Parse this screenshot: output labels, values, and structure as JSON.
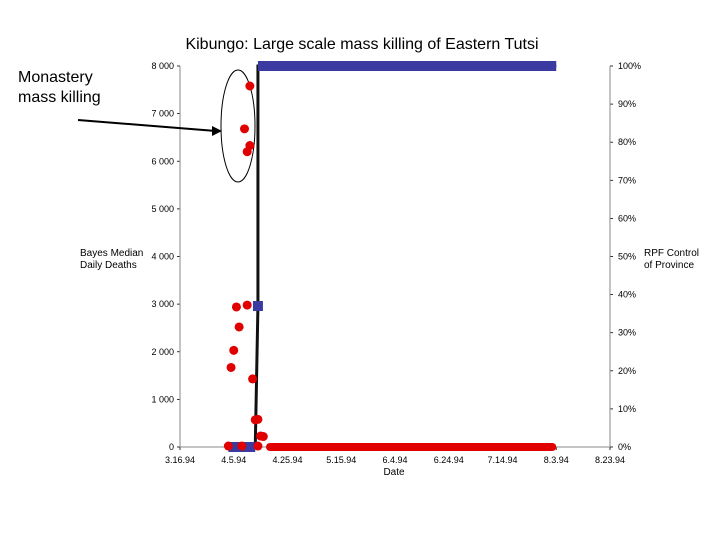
{
  "chart_data": {
    "type": "scatter",
    "title": "Kibungo: Large scale mass killing of Eastern Tutsi",
    "xlabel": "Date",
    "ylabel_left": "Bayes Median Daily Deaths",
    "ylabel_right": "RPF Control of Province",
    "annotation": "Monastery mass killing",
    "x_tick_labels": [
      "3.16.94",
      "4.5.94",
      "4.25.94",
      "5.15.94",
      "6.4.94",
      "6.24.94",
      "7.14.94",
      "8.3.94",
      "8.23.94"
    ],
    "x_range_days": [
      0,
      160
    ],
    "y_left_ticks": [
      "0",
      "1 000",
      "2 000",
      "3 000",
      "4 000",
      "5 000",
      "6 000",
      "7 000",
      "8 000"
    ],
    "y_left_range": [
      0,
      8000
    ],
    "y_right_ticks": [
      "0%",
      "10%",
      "20%",
      "30%",
      "40%",
      "50%",
      "60%",
      "70%",
      "80%",
      "90%",
      "100%"
    ],
    "y_right_range": [
      0,
      100
    ],
    "series": [
      {
        "color": "#e00000",
        "marker": "circle",
        "points": [
          {
            "x": 26,
            "y": 7580
          },
          {
            "x": 24,
            "y": 6680
          },
          {
            "x": 26,
            "y": 6330
          },
          {
            "x": 25,
            "y": 6200
          },
          {
            "x": 21,
            "y": 2940
          },
          {
            "x": 25,
            "y": 2980
          },
          {
            "x": 22,
            "y": 2520
          },
          {
            "x": 20,
            "y": 2030
          },
          {
            "x": 19,
            "y": 1670
          },
          {
            "x": 27,
            "y": 1430
          },
          {
            "x": 28,
            "y": 570
          },
          {
            "x": 29,
            "y": 580
          },
          {
            "x": 30,
            "y": 230
          },
          {
            "x": 31,
            "y": 220
          },
          {
            "x": 29,
            "y": 20
          },
          {
            "x": 23,
            "y": 20
          },
          {
            "x": 18,
            "y": 20
          }
        ],
        "floor_line": {
          "x_start": 32,
          "x_end": 140,
          "y": 0
        }
      },
      {
        "color": "#3a3aa0",
        "marker": "square",
        "axis": "right",
        "points": [
          {
            "x": 18,
            "y": 0
          },
          {
            "x": 28,
            "y": 0
          },
          {
            "x": 29,
            "y": 37
          },
          {
            "x": 29,
            "y": 100
          },
          {
            "x": 140,
            "y": 100
          }
        ]
      }
    ]
  }
}
